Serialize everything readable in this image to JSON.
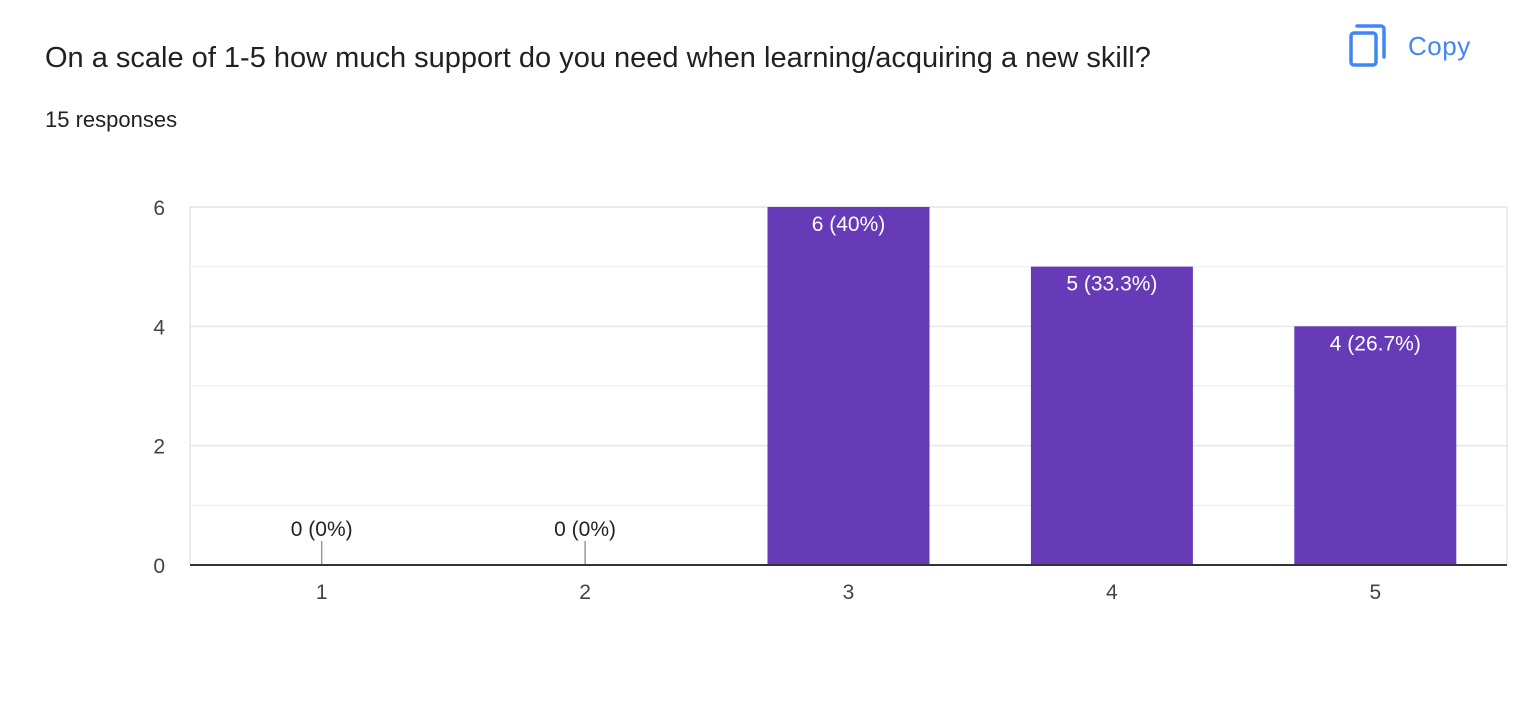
{
  "header": {
    "question": "On a scale of 1-5 how much support do you need when learning/acquiring a new skill?",
    "responses": "15 responses",
    "copy_label": "Copy",
    "copy_icon": "copy-icon"
  },
  "colors": {
    "bar": "#673ab7",
    "accent": "#4285f4",
    "gridline": "#e6e6e6",
    "axis": "#333333"
  },
  "chart_data": {
    "type": "bar",
    "categories": [
      "1",
      "2",
      "3",
      "4",
      "5"
    ],
    "values": [
      0,
      0,
      6,
      5,
      4
    ],
    "data_labels": [
      "0 (0%)",
      "0 (0%)",
      "6 (40%)",
      "5 (33.3%)",
      "4 (26.7%)"
    ],
    "y_ticks": [
      0,
      2,
      4,
      6
    ],
    "ylim": [
      0,
      6
    ],
    "minor_gridlines": true,
    "legend": "none"
  }
}
